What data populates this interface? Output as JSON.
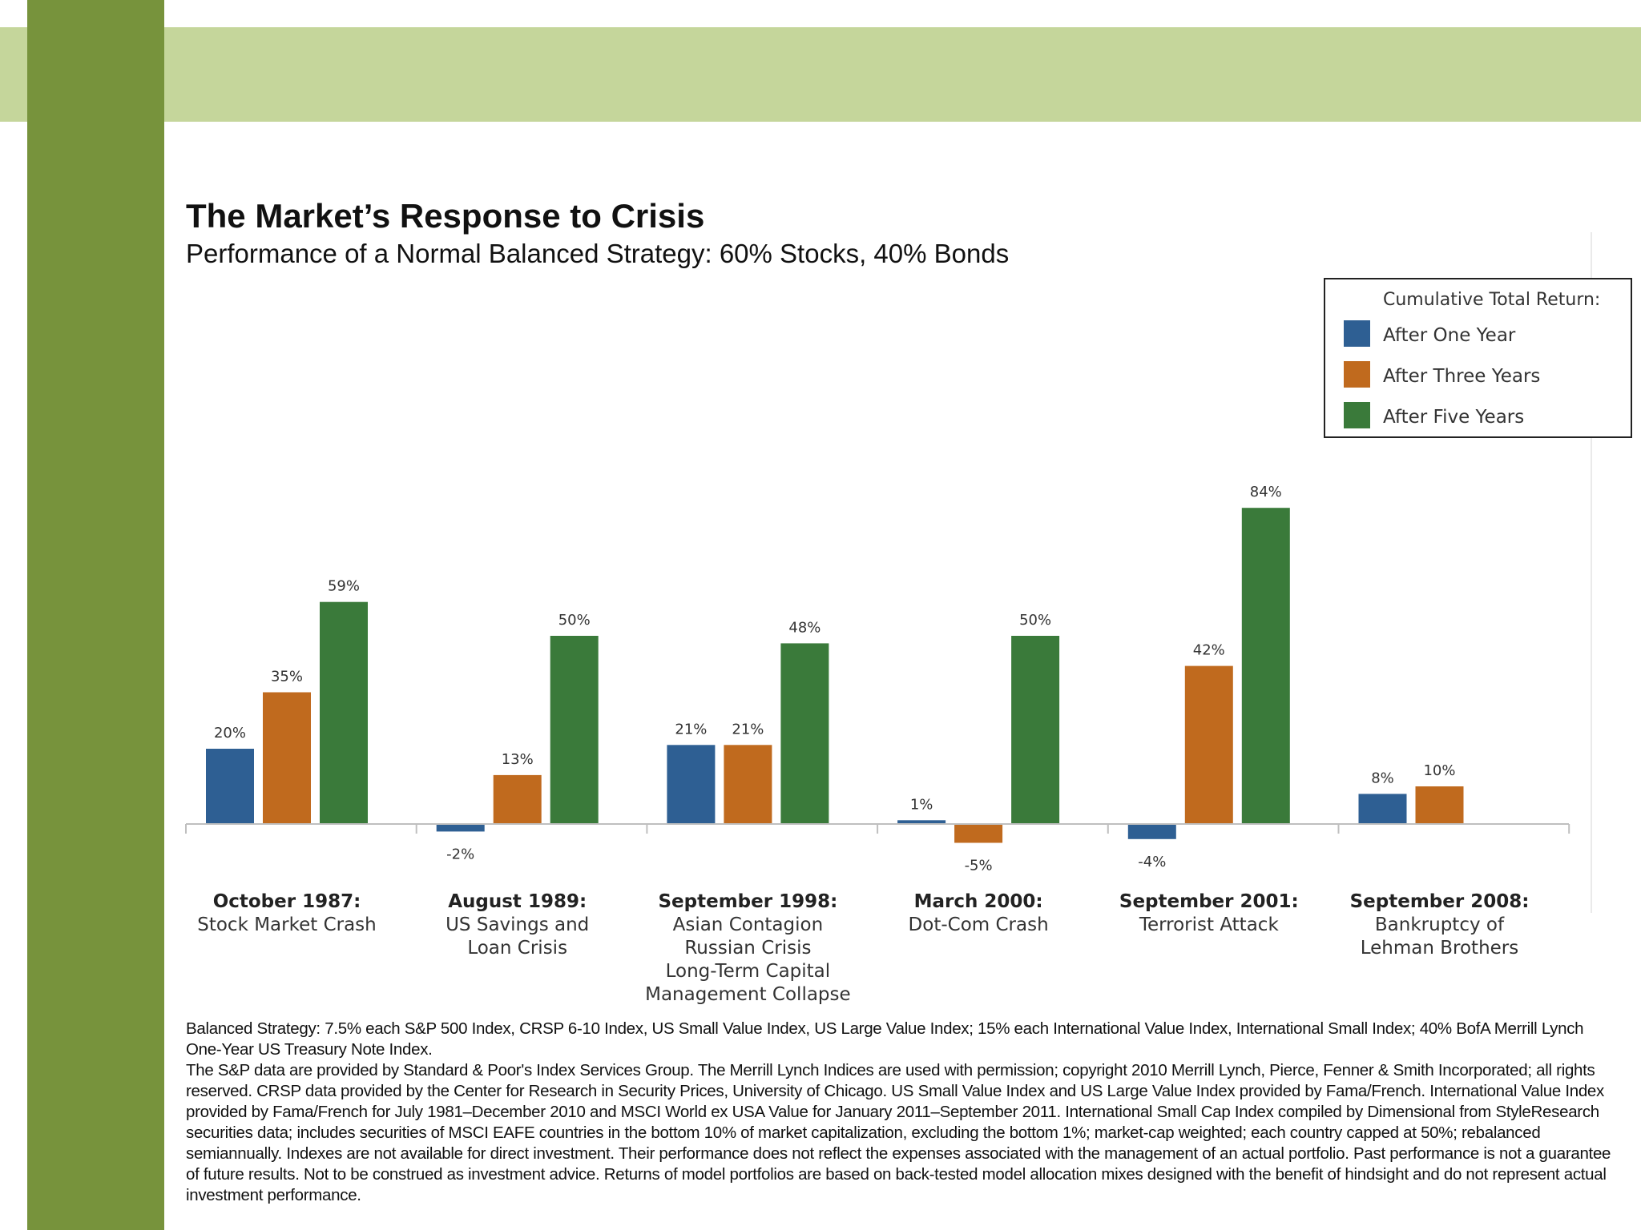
{
  "chart_data": {
    "type": "bar",
    "title": "The Market’s Response to Crisis",
    "subtitle": "Performance of a Normal Balanced Strategy: 60% Stocks, 40% Bonds",
    "xlabel": "",
    "ylabel": "",
    "ylim": [
      -10,
      90
    ],
    "grid": false,
    "legend": {
      "title": "Cumulative Total Return:",
      "placement": "top-right"
    },
    "categories": [
      {
        "title": "October 1987:",
        "lines": [
          "Stock Market Crash"
        ]
      },
      {
        "title": "August 1989:",
        "lines": [
          "US Savings and",
          "Loan Crisis"
        ]
      },
      {
        "title": "September 1998:",
        "lines": [
          "Asian Contagion",
          "Russian Crisis",
          "Long-Term Capital",
          "Management Collapse"
        ]
      },
      {
        "title": "March 2000:",
        "lines": [
          "Dot-Com Crash"
        ]
      },
      {
        "title": "September 2001:",
        "lines": [
          "Terrorist Attack"
        ]
      },
      {
        "title": "September 2008:",
        "lines": [
          "Bankruptcy of",
          "Lehman Brothers"
        ]
      }
    ],
    "series": [
      {
        "name": "After One Year",
        "color": "#2e5f93",
        "values": [
          20,
          -2,
          21,
          1,
          -4,
          8
        ]
      },
      {
        "name": "After Three Years",
        "color": "#c06a1e",
        "values": [
          35,
          13,
          21,
          -5,
          42,
          10
        ]
      },
      {
        "name": "After Five Years",
        "color": "#3a7a3a",
        "values": [
          59,
          50,
          48,
          50,
          84,
          null
        ]
      }
    ]
  },
  "footnote": {
    "paragraph1": "Balanced Strategy: 7.5% each  S&P 500 Index, CRSP 6-10 Index, US Small Value Index, US Large Value Index; 15% each International Value Index, International Small Index; 40% BofA Merrill Lynch One-Year US Treasury Note Index.",
    "paragraph2": "The S&P data are provided by Standard & Poor's Index Services Group. The Merrill Lynch Indices are used with permission; copyright 2010 Merrill Lynch, Pierce, Fenner & Smith Incorporated; all rights reserved. CRSP  data provided by the Center for Research in Security Prices, University of Chicago. US Small Value Index and US Large Value Index provided by Fama/French. International  Value Index provided by Fama/French for July 1981–December 2010 and MSCI World ex USA Value for January 2011–September 2011. International Small Cap Index compiled by Dimensional from StyleResearch securities data; includes securities of MSCI EAFE countries in the bottom 10% of market capitalization, excluding the bottom 1%; market-cap weighted; each country capped at 50%; rebalanced semiannually. Indexes are not available for direct investment. Their performance does not reflect the expenses associated with the management of an actual portfolio. Past performance is not a guarantee of future results. Not to  be construed as investment advice. Returns of model portfolios are based on back-tested model allocation mixes designed with the benefit of hindsight and do not represent actual investment performance."
  },
  "colors": {
    "left_bar": "#77933c",
    "top_band": "#c5d69b"
  }
}
